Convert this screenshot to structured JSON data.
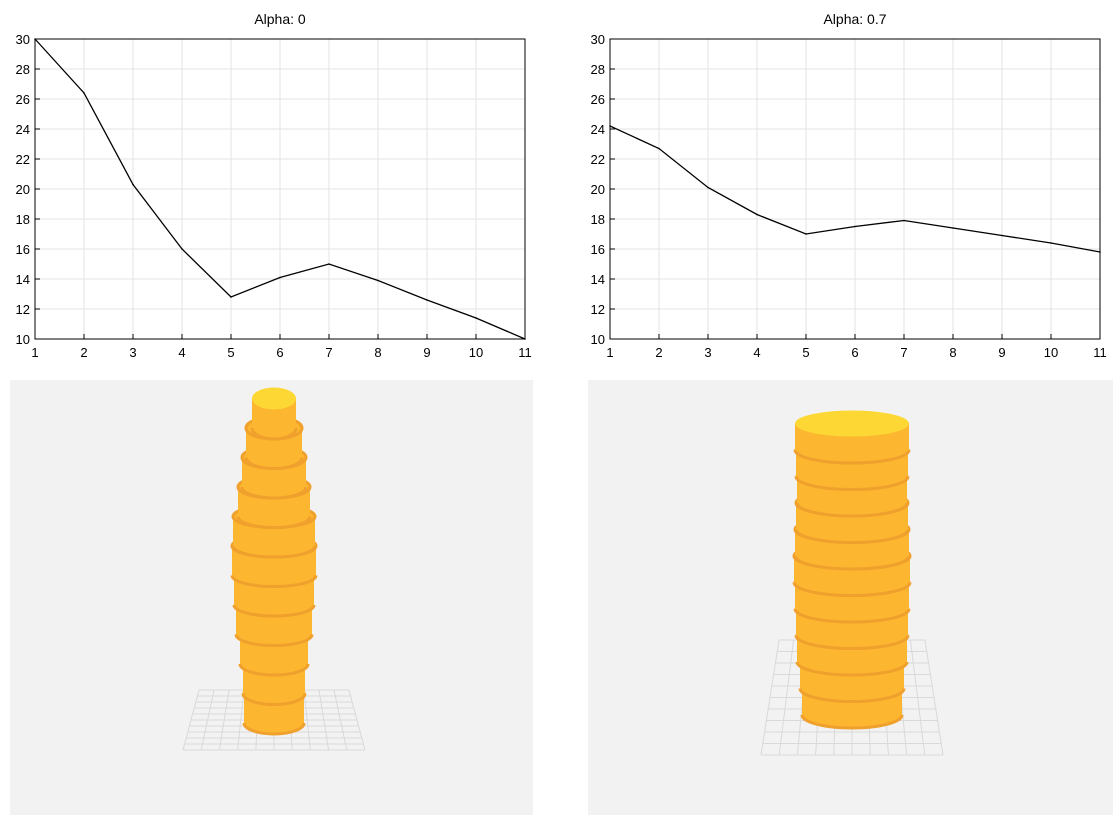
{
  "chart_data": [
    {
      "type": "line",
      "title": "Alpha: 0",
      "xlabel": "",
      "ylabel": "",
      "x": [
        1,
        2,
        3,
        4,
        5,
        6,
        7,
        8,
        9,
        10,
        11
      ],
      "series": [
        {
          "values": [
            30,
            26.4,
            20.3,
            16.0,
            12.8,
            14.1,
            15.0,
            13.9,
            12.6,
            11.4,
            10.0
          ]
        }
      ],
      "xlim": [
        1,
        11
      ],
      "ylim": [
        10,
        30
      ],
      "xticks": [
        1,
        2,
        3,
        4,
        5,
        6,
        7,
        8,
        9,
        10,
        11
      ],
      "yticks": [
        10,
        12,
        14,
        16,
        18,
        20,
        22,
        24,
        26,
        28,
        30
      ],
      "grid": true,
      "line_color": "#000000"
    },
    {
      "type": "line",
      "title": "Alpha: 0.7",
      "xlabel": "",
      "ylabel": "",
      "x": [
        1,
        2,
        3,
        4,
        5,
        6,
        7,
        8,
        9,
        10,
        11
      ],
      "series": [
        {
          "values": [
            24.2,
            22.7,
            20.1,
            18.3,
            17.0,
            17.5,
            17.9,
            17.4,
            16.9,
            16.4,
            15.8
          ]
        }
      ],
      "xlim": [
        1,
        11
      ],
      "ylim": [
        10,
        30
      ],
      "xticks": [
        1,
        2,
        3,
        4,
        5,
        6,
        7,
        8,
        9,
        10,
        11
      ],
      "yticks": [
        10,
        12,
        14,
        16,
        18,
        20,
        22,
        24,
        26,
        28,
        30
      ],
      "grid": true,
      "line_color": "#000000"
    }
  ],
  "renders": [
    {
      "description_name": "stacked-cylinder-render-alpha-0",
      "radii": [
        30,
        31,
        34,
        38,
        40,
        42,
        41,
        36,
        32,
        28,
        22
      ],
      "colors": {
        "side": "#FDB62F",
        "rim": "#F0A02C",
        "top": "#FDD835",
        "panel_bg": "#F2F2F2",
        "floor_grid": "#D9D9D9"
      }
    },
    {
      "description_name": "stacked-cylinder-render-alpha-0.7",
      "radii": [
        50,
        52,
        55,
        56,
        57,
        58,
        57,
        56,
        55,
        56,
        57
      ],
      "colors": {
        "side": "#FDB62F",
        "rim": "#F0A02C",
        "top": "#FDD835",
        "panel_bg": "#F2F2F2",
        "floor_grid": "#D9D9D9"
      }
    }
  ]
}
